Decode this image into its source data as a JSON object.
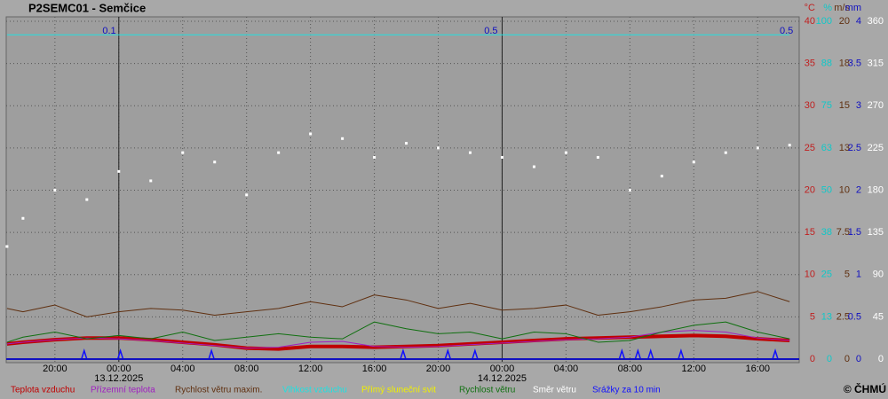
{
  "chart_data": {
    "type": "line",
    "title": "P2SEMC01 - Semčice",
    "copyright": "© ČHMÚ",
    "xlim": [
      -7.05,
      42.6
    ],
    "xticks": [
      {
        "value": -4,
        "label": "20:00"
      },
      {
        "value": 0,
        "label": "00:00"
      },
      {
        "value": 4,
        "label": "04:00"
      },
      {
        "value": 8,
        "label": "08:00"
      },
      {
        "value": 12,
        "label": "12:00"
      },
      {
        "value": 16,
        "label": "16:00"
      },
      {
        "value": 20,
        "label": "20:00"
      },
      {
        "value": 24,
        "label": "00:00"
      },
      {
        "value": 28,
        "label": "04:00"
      },
      {
        "value": 32,
        "label": "08:00"
      },
      {
        "value": 36,
        "label": "12:00"
      },
      {
        "value": 40,
        "label": "16:00"
      }
    ],
    "date_labels": [
      {
        "value": 0,
        "label": "13.12.2025"
      },
      {
        "value": 24,
        "label": "14.12.2025"
      }
    ],
    "grid": true,
    "axes": [
      {
        "unit": "°C",
        "color": "#c02020",
        "ylim": [
          0,
          40
        ],
        "yticks": [
          0,
          5,
          10,
          15,
          20,
          25,
          30,
          35,
          40
        ]
      },
      {
        "unit": "%",
        "color": "#10c8c8",
        "ylim": [
          0,
          100
        ],
        "yticks": [
          0,
          {
            "value": 12.5,
            "label": "13"
          },
          25,
          {
            "value": 37.5,
            "label": "38"
          },
          50,
          {
            "value": 62.5,
            "label": "63"
          },
          75,
          {
            "value": 87.5,
            "label": "88"
          },
          100
        ]
      },
      {
        "unit": "m/s",
        "color": "#603010",
        "ylim": [
          0,
          20
        ],
        "yticks": [
          0,
          2.5,
          5,
          7.5,
          10,
          {
            "value": 12.5,
            "label": "13"
          },
          15,
          {
            "value": 17.5,
            "label": "18"
          },
          20
        ]
      },
      {
        "unit": "mm",
        "color": "#1010c0",
        "ylim": [
          0,
          4
        ],
        "yticks": [
          0,
          0.5,
          1,
          1.5,
          2,
          2.5,
          3,
          3.5,
          4
        ]
      },
      {
        "color": "#ffffff",
        "ylim": [
          0,
          360
        ],
        "yticks": [
          0,
          45,
          90,
          135,
          180,
          225,
          270,
          315,
          360
        ]
      }
    ],
    "annotations": [
      {
        "x": -0.6,
        "text": "0.1"
      },
      {
        "x": 23.3,
        "text": "0.5"
      },
      {
        "x": 41.8,
        "text": "0.5"
      }
    ],
    "series": [
      {
        "name": "Teplota vzduchu",
        "color": "#c00000",
        "axis": 0,
        "kind": "line",
        "width": 4,
        "x": [
          -7,
          -6,
          -4,
          -2,
          0,
          2,
          4,
          6,
          8,
          10,
          12,
          14,
          16,
          18,
          20,
          22,
          24,
          26,
          28,
          30,
          32,
          34,
          36,
          38,
          40,
          42
        ],
        "values": [
          1.8,
          2.0,
          2.3,
          2.5,
          2.5,
          2.3,
          2.0,
          1.7,
          1.3,
          1.2,
          1.5,
          1.5,
          1.4,
          1.5,
          1.6,
          1.8,
          2.0,
          2.2,
          2.4,
          2.5,
          2.6,
          2.7,
          2.8,
          2.7,
          2.4,
          2.2
        ]
      },
      {
        "name": "Přízemní teplota",
        "color": "#a020c0",
        "axis": 0,
        "kind": "line",
        "width": 1,
        "x": [
          -7,
          -6,
          -4,
          -2,
          0,
          2,
          4,
          6,
          8,
          10,
          12,
          14,
          16,
          18,
          20,
          22,
          24,
          26,
          28,
          30,
          32,
          34,
          36,
          38,
          40,
          42
        ],
        "values": [
          1.8,
          2.0,
          2.3,
          2.5,
          2.4,
          2.2,
          1.9,
          1.6,
          1.3,
          1.4,
          2.0,
          2.1,
          1.5,
          1.4,
          1.5,
          1.7,
          1.9,
          2.1,
          2.3,
          2.4,
          2.6,
          3.2,
          3.4,
          3.2,
          2.5,
          2.2
        ]
      },
      {
        "name": "Rychlost větru maxim.",
        "color": "#603010",
        "axis": 2,
        "kind": "line",
        "width": 1,
        "x": [
          -7,
          -6,
          -4,
          -2,
          0,
          2,
          4,
          6,
          8,
          10,
          12,
          14,
          16,
          18,
          20,
          22,
          24,
          26,
          28,
          30,
          32,
          34,
          36,
          38,
          40,
          42
        ],
        "values": [
          3.0,
          2.8,
          3.2,
          2.5,
          2.8,
          3.0,
          2.9,
          2.6,
          2.8,
          3.0,
          3.4,
          3.1,
          3.8,
          3.5,
          3.0,
          3.3,
          2.9,
          3.0,
          3.2,
          2.6,
          2.8,
          3.1,
          3.5,
          3.6,
          4.0,
          3.4
        ]
      },
      {
        "name": "Vlhkost vzduchu",
        "color": "#20e0e0",
        "axis": 1,
        "kind": "line",
        "width": 1,
        "x": [
          -7,
          42
        ],
        "values": [
          96,
          96
        ]
      },
      {
        "name": "Přímý sluneční svit",
        "color": "#f0f000",
        "axis": 1,
        "kind": "line",
        "width": 1,
        "x": [],
        "values": []
      },
      {
        "name": "Rychlost větru",
        "color": "#107010",
        "axis": 2,
        "kind": "line",
        "width": 1,
        "x": [
          -7,
          -6,
          -4,
          -2,
          0,
          2,
          4,
          6,
          8,
          10,
          12,
          14,
          16,
          18,
          20,
          22,
          24,
          26,
          28,
          30,
          32,
          34,
          36,
          38,
          40,
          42
        ],
        "values": [
          1.0,
          1.3,
          1.6,
          1.2,
          1.4,
          1.2,
          1.6,
          1.1,
          1.3,
          1.5,
          1.3,
          1.2,
          2.2,
          1.8,
          1.5,
          1.6,
          1.2,
          1.6,
          1.5,
          1.0,
          1.1,
          1.6,
          2.0,
          2.2,
          1.6,
          1.2
        ]
      },
      {
        "name": "Směr větru",
        "color": "#ffffff",
        "axis": 4,
        "kind": "dots",
        "x": [
          -7,
          -6,
          -4,
          -2,
          0,
          2,
          4,
          6,
          8,
          10,
          12,
          14,
          16,
          18,
          20,
          22,
          24,
          26,
          28,
          30,
          32,
          34,
          36,
          38,
          40,
          42
        ],
        "values": [
          120,
          150,
          180,
          170,
          200,
          190,
          220,
          210,
          175,
          220,
          240,
          235,
          215,
          230,
          225,
          220,
          215,
          205,
          220,
          215,
          180,
          195,
          210,
          220,
          225,
          228
        ]
      },
      {
        "name": "Srážky za 10 min",
        "color": "#1010ff",
        "axis": 3,
        "kind": "spikes",
        "x": [
          -2.17,
          0.1,
          5.8,
          17.8,
          20.6,
          22.3,
          31.5,
          32.5,
          33.3,
          35.2,
          41.1
        ],
        "values": [
          0.1,
          0.1,
          0.1,
          0.1,
          0.1,
          0.1,
          0.1,
          0.1,
          0.1,
          0.1,
          0.1
        ]
      }
    ]
  }
}
